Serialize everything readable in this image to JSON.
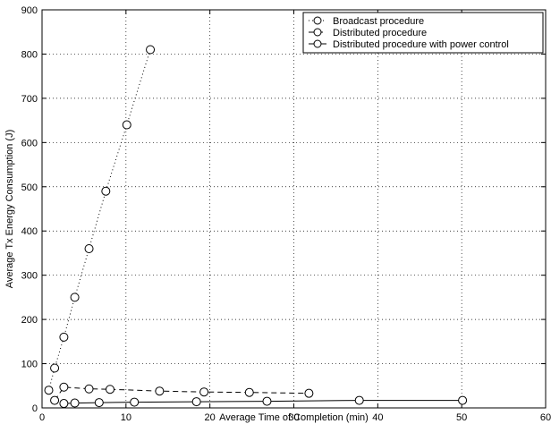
{
  "chart_data": {
    "type": "line",
    "title": "",
    "xlabel": "Average Time of Completion (min)",
    "ylabel": "Average Tx Energy Consumption (J)",
    "xlim": [
      0,
      60
    ],
    "ylim": [
      0,
      900
    ],
    "xticks": [
      0,
      10,
      20,
      30,
      40,
      50,
      60
    ],
    "yticks": [
      0,
      100,
      200,
      300,
      400,
      500,
      600,
      700,
      800,
      900
    ],
    "grid": true,
    "legend_position": "top-right",
    "series": [
      {
        "name": "Broadcast procedure",
        "line_style": "dotted",
        "marker": "circle",
        "color": "#000000",
        "points": [
          [
            0.8,
            40
          ],
          [
            1.5,
            90
          ],
          [
            2.6,
            160
          ],
          [
            3.9,
            250
          ],
          [
            5.6,
            360
          ],
          [
            7.6,
            490
          ],
          [
            10.1,
            640
          ],
          [
            12.9,
            810
          ]
        ]
      },
      {
        "name": "Distributed procedure",
        "line_style": "dashed",
        "marker": "circle",
        "color": "#000000",
        "points": [
          [
            1.5,
            17
          ],
          [
            2.6,
            47
          ],
          [
            5.6,
            43
          ],
          [
            8.1,
            42
          ],
          [
            14.0,
            38
          ],
          [
            19.3,
            36
          ],
          [
            24.7,
            35
          ],
          [
            31.8,
            33
          ]
        ]
      },
      {
        "name": "Distributed procedure with power control",
        "line_style": "solid",
        "marker": "circle",
        "color": "#000000",
        "points": [
          [
            2.6,
            10
          ],
          [
            3.9,
            11
          ],
          [
            6.8,
            12
          ],
          [
            11.0,
            13
          ],
          [
            18.4,
            14
          ],
          [
            26.8,
            15
          ],
          [
            37.8,
            17
          ],
          [
            50.1,
            17
          ]
        ]
      }
    ]
  }
}
